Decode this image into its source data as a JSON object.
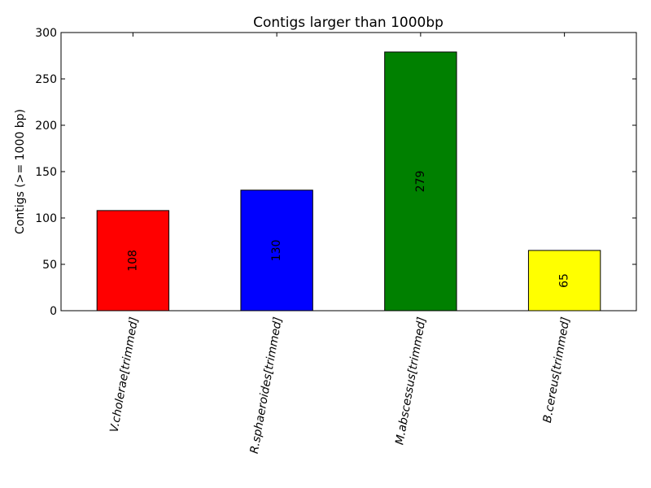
{
  "chart_data": {
    "type": "bar",
    "title": "Contigs larger than 1000bp",
    "xlabel": "",
    "ylabel": "Contigs (>= 1000 bp)",
    "categories": [
      "V.cholerae[trimmed]",
      "R.sphaeroides[trimmed]",
      "M.abscessus[trimmed]",
      "B.cereus[trimmed]"
    ],
    "values": [
      108,
      130,
      279,
      65
    ],
    "data_labels": [
      "108",
      "130",
      "279",
      "65"
    ],
    "colors": [
      "#ff0000",
      "#0000ff",
      "#008000",
      "#ffff00"
    ],
    "ylim": [
      0,
      300
    ],
    "yticks": [
      0,
      50,
      100,
      150,
      200,
      250,
      300
    ],
    "ytick_labels": [
      "0",
      "50",
      "100",
      "150",
      "200",
      "250",
      "300"
    ],
    "grid": false,
    "legend": "none"
  }
}
